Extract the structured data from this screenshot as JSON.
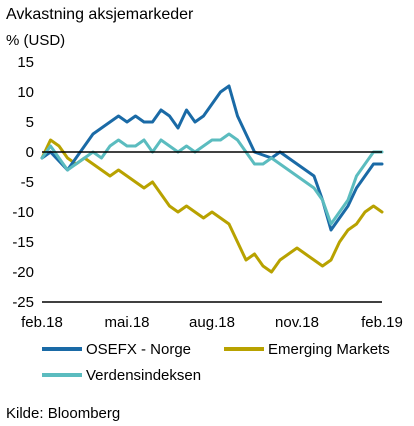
{
  "chart_data": {
    "type": "line",
    "title": "Avkastning aksjemarkeder",
    "ylabel": "% (USD)",
    "xlabel": "",
    "source": "Kilde: Bloomberg",
    "ylim": [
      -25,
      15
    ],
    "yticks": [
      15,
      10,
      5,
      0,
      -5,
      -10,
      -15,
      -20,
      -25
    ],
    "xticks": [
      "feb.18",
      "mai.18",
      "aug.18",
      "nov.18",
      "feb.19"
    ],
    "xrange_months": [
      0,
      12
    ],
    "grid": false,
    "legend_position": "bottom",
    "series": [
      {
        "name": "OSEFX - Norge",
        "color": "#1a6aa6",
        "x": [
          0,
          0.3,
          0.6,
          0.9,
          1.2,
          1.5,
          1.8,
          2.1,
          2.4,
          2.7,
          3.0,
          3.3,
          3.6,
          3.9,
          4.2,
          4.5,
          4.8,
          5.1,
          5.4,
          5.7,
          6.0,
          6.3,
          6.6,
          6.9,
          7.2,
          7.5,
          7.8,
          8.1,
          8.4,
          8.7,
          9.0,
          9.3,
          9.6,
          9.9,
          10.2,
          10.5,
          10.8,
          11.1,
          11.4,
          11.7,
          12.0
        ],
        "values": [
          -1,
          0,
          -1.5,
          -3,
          -1,
          1,
          3,
          4,
          5,
          6,
          5,
          6,
          5,
          5,
          7,
          6,
          4,
          7,
          5,
          6,
          8,
          10,
          11,
          6,
          3,
          0,
          -0.5,
          -1,
          0,
          -1,
          -2,
          -3,
          -4,
          -8,
          -13,
          -11,
          -9,
          -6,
          -4,
          -2,
          -2
        ]
      },
      {
        "name": "Emerging Markets",
        "color": "#b8a200",
        "x": [
          0,
          0.3,
          0.6,
          0.9,
          1.2,
          1.5,
          1.8,
          2.1,
          2.4,
          2.7,
          3.0,
          3.3,
          3.6,
          3.9,
          4.2,
          4.5,
          4.8,
          5.1,
          5.4,
          5.7,
          6.0,
          6.3,
          6.6,
          6.9,
          7.2,
          7.5,
          7.8,
          8.1,
          8.4,
          8.7,
          9.0,
          9.3,
          9.6,
          9.9,
          10.2,
          10.5,
          10.8,
          11.1,
          11.4,
          11.7,
          12.0
        ],
        "values": [
          -1,
          2,
          1,
          -1,
          -2,
          -1,
          -2,
          -3,
          -4,
          -3,
          -4,
          -5,
          -6,
          -5,
          -7,
          -9,
          -10,
          -9,
          -10,
          -11,
          -10,
          -11,
          -12,
          -15,
          -18,
          -17,
          -19,
          -20,
          -18,
          -17,
          -16,
          -17,
          -18,
          -19,
          -18,
          -15,
          -13,
          -12,
          -10,
          -9,
          -10
        ]
      },
      {
        "name": "Verdensindeksen",
        "color": "#5bbcbf",
        "x": [
          0,
          0.3,
          0.6,
          0.9,
          1.2,
          1.5,
          1.8,
          2.1,
          2.4,
          2.7,
          3.0,
          3.3,
          3.6,
          3.9,
          4.2,
          4.5,
          4.8,
          5.1,
          5.4,
          5.7,
          6.0,
          6.3,
          6.6,
          6.9,
          7.2,
          7.5,
          7.8,
          8.1,
          8.4,
          8.7,
          9.0,
          9.3,
          9.6,
          9.9,
          10.2,
          10.5,
          10.8,
          11.1,
          11.4,
          11.7,
          12.0
        ],
        "values": [
          -1,
          1,
          -1,
          -3,
          -2,
          -1,
          0,
          -1,
          1,
          2,
          1,
          1,
          2,
          0,
          2,
          1,
          0,
          1,
          0,
          1,
          2,
          2,
          3,
          2,
          0,
          -2,
          -2,
          -1,
          -2,
          -3,
          -4,
          -5,
          -6,
          -8,
          -12,
          -10,
          -8,
          -4,
          -2,
          0,
          0
        ]
      }
    ]
  }
}
